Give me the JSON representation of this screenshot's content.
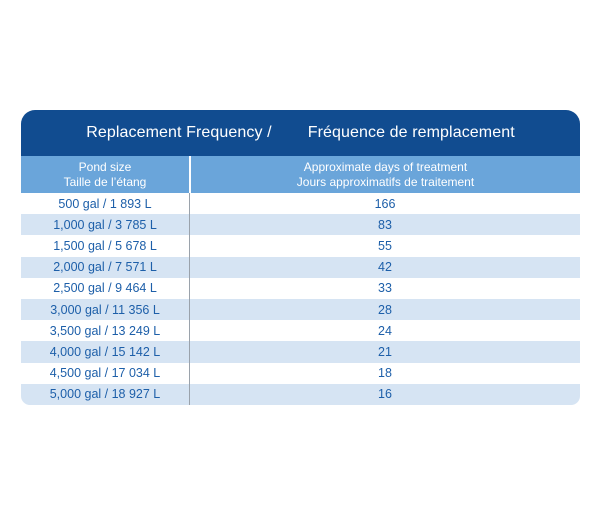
{
  "chart_data": {
    "type": "table",
    "title_en": "Replacement Frequency /",
    "title_fr": "Fréquence de remplacement",
    "column_headers": {
      "pond_size_en": "Pond size",
      "pond_size_fr": "Taille de l’étang",
      "days_en": "Approximate days of treatment",
      "days_fr": "Jours approximatifs de traitement"
    },
    "rows": [
      {
        "pond_size": "500 gal / 1 893 L",
        "days": "166"
      },
      {
        "pond_size": "1,000 gal / 3 785 L",
        "days": "83"
      },
      {
        "pond_size": "1,500 gal / 5 678 L",
        "days": "55"
      },
      {
        "pond_size": "2,000 gal / 7 571 L",
        "days": "42"
      },
      {
        "pond_size": "2,500 gal / 9 464 L",
        "days": "33"
      },
      {
        "pond_size": "3,000 gal / 11 356 L",
        "days": "28"
      },
      {
        "pond_size": "3,500 gal / 13 249 L",
        "days": "24"
      },
      {
        "pond_size": "4,000 gal / 15 142 L",
        "days": "21"
      },
      {
        "pond_size": "4,500 gal / 17 034 L",
        "days": "18"
      },
      {
        "pond_size": "5,000 gal / 18 927 L",
        "days": "16"
      }
    ]
  },
  "colors": {
    "header_bg": "#114c90",
    "subheader_bg": "#6aa5da",
    "row_alt_bg": "#d6e4f3",
    "row_text": "#1d5fa9",
    "header_text": "#ffffff",
    "divider_rows": "#9aa2ab",
    "divider_subheader": "#ffffff",
    "page_bg": "#ffffff"
  }
}
